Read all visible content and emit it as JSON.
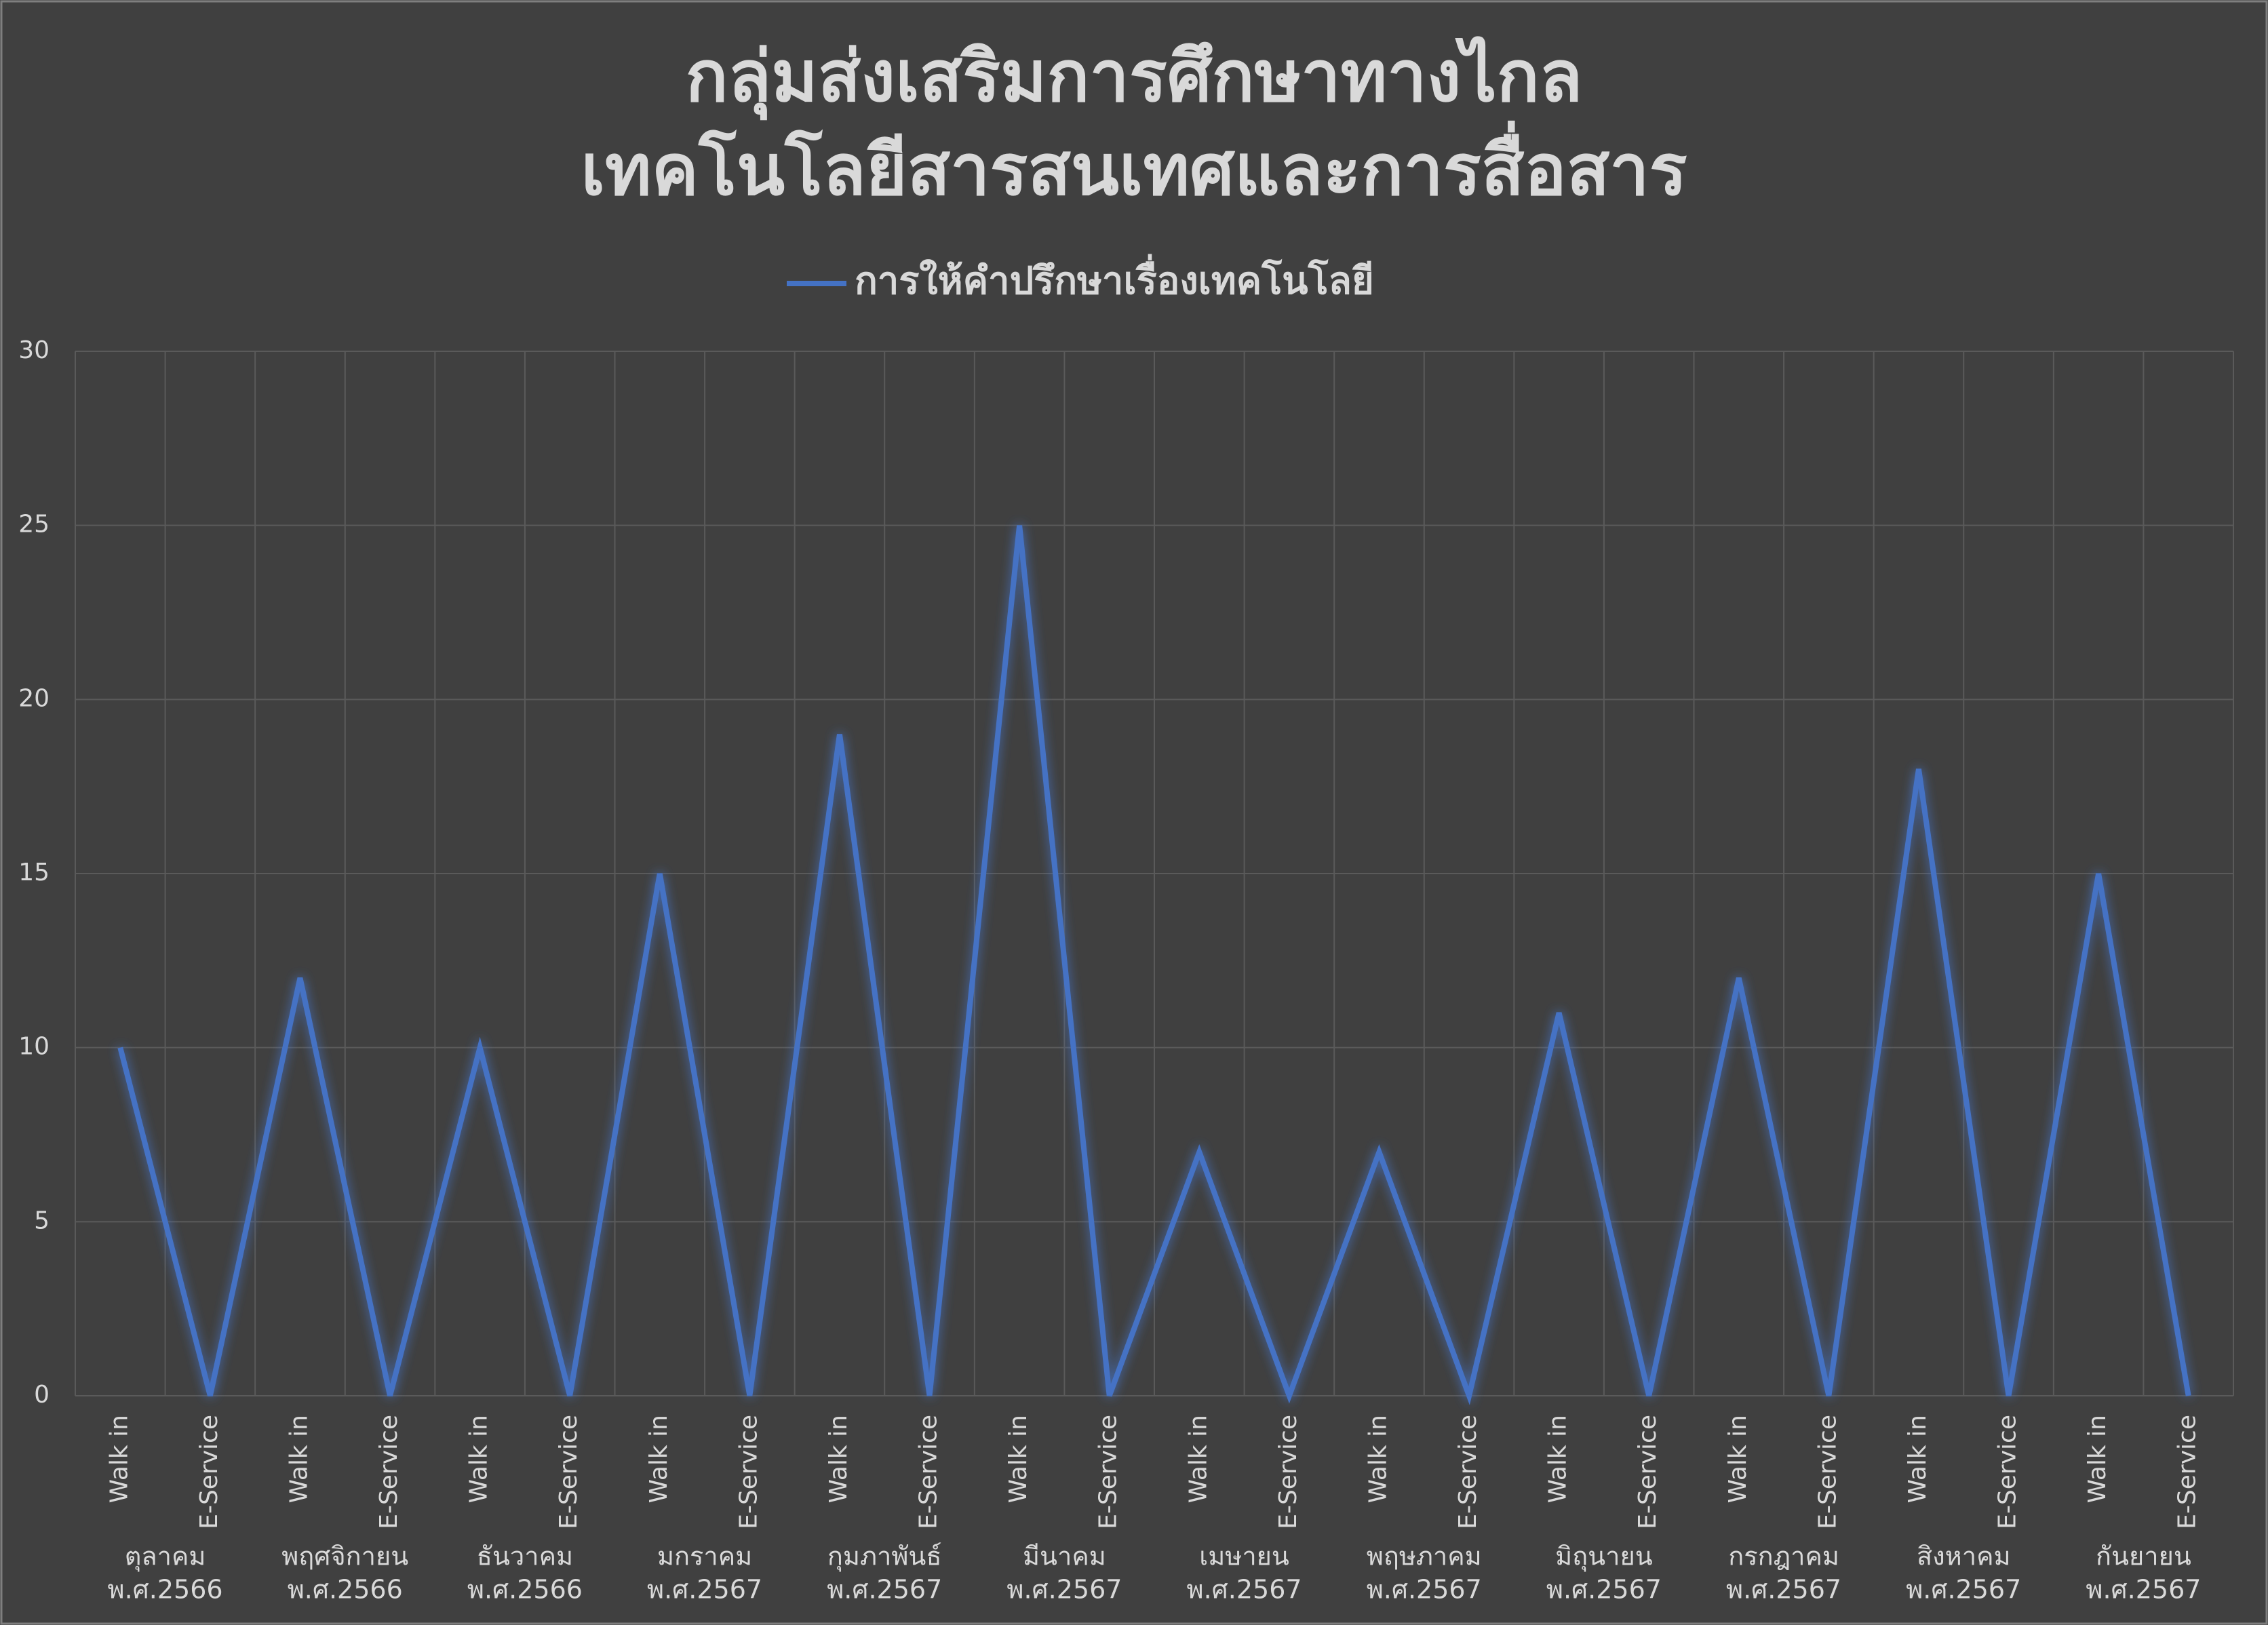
{
  "chart_data": {
    "type": "line",
    "title": [
      "กลุ่มส่งเสริมการศึกษาทางไกล",
      "เทคโนโลยีสารสนเทศและการสื่อสาร"
    ],
    "categories": [
      "Walk in",
      "E-Service",
      "Walk in",
      "E-Service",
      "Walk in",
      "E-Service",
      "Walk in",
      "E-Service",
      "Walk in",
      "E-Service",
      "Walk in",
      "E-Service",
      "Walk in",
      "E-Service",
      "Walk in",
      "E-Service",
      "Walk in",
      "E-Service",
      "Walk in",
      "E-Service",
      "Walk in",
      "E-Service",
      "Walk in",
      "E-Service"
    ],
    "groups": [
      [
        "ตุลาคม",
        "พ.ศ.2566"
      ],
      [
        "พฤศจิกายน",
        "พ.ศ.2566"
      ],
      [
        "ธันวาคม",
        "พ.ศ.2566"
      ],
      [
        "มกราคม",
        "พ.ศ.2567"
      ],
      [
        "กุมภาพันธ์",
        "พ.ศ.2567"
      ],
      [
        "มีนาคม",
        "พ.ศ.2567"
      ],
      [
        "เมษายน",
        "พ.ศ.2567"
      ],
      [
        "พฤษภาคม",
        "พ.ศ.2567"
      ],
      [
        "มิถุนายน",
        "พ.ศ.2567"
      ],
      [
        "กรกฎาคม",
        "พ.ศ.2567"
      ],
      [
        "สิงหาคม",
        "พ.ศ.2567"
      ],
      [
        "กันยายน",
        "พ.ศ.2567"
      ]
    ],
    "series": [
      {
        "name": "การให้คำปรึกษาเรื่องเทคโนโลยี",
        "color": "#4472c4",
        "values": [
          10,
          0,
          12,
          0,
          10,
          0,
          15,
          0,
          19,
          0,
          25,
          0,
          7,
          0,
          7,
          0,
          11,
          0,
          12,
          0,
          18,
          0,
          15,
          0
        ]
      }
    ],
    "ylim": [
      0,
      30
    ],
    "yticks": [
      0,
      5,
      10,
      15,
      20,
      25,
      30
    ],
    "grid": true,
    "legend": "top"
  }
}
